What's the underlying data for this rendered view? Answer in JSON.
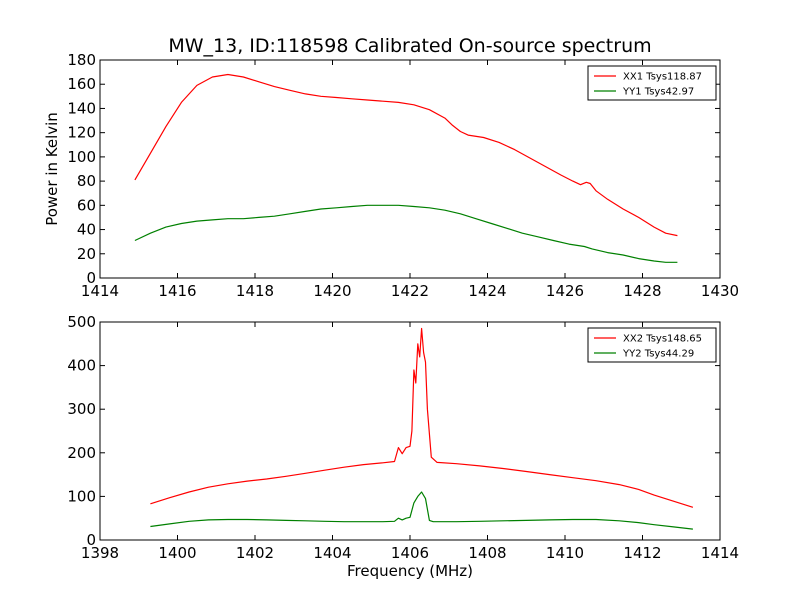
{
  "title": "MW_13, ID:118598 Calibrated On-source spectrum",
  "chart_data": [
    {
      "type": "line",
      "title": "MW_13, ID:118598 Calibrated On-source spectrum",
      "xlabel": "",
      "ylabel": "Power in Kelvin",
      "xlim": [
        1414,
        1430
      ],
      "ylim": [
        0,
        180
      ],
      "xticks": [
        1414,
        1416,
        1418,
        1420,
        1422,
        1424,
        1426,
        1428,
        1430
      ],
      "yticks": [
        0,
        20,
        40,
        60,
        80,
        100,
        120,
        140,
        160,
        180
      ],
      "grid": false,
      "legend": "top-right",
      "series": [
        {
          "name": "XX1 Tsys118.87",
          "color": "#ff0000",
          "x": [
            1414.9,
            1415.3,
            1415.7,
            1416.1,
            1416.5,
            1416.9,
            1417.3,
            1417.7,
            1418.1,
            1418.5,
            1418.9,
            1419.3,
            1419.7,
            1420.1,
            1420.5,
            1420.9,
            1421.3,
            1421.7,
            1422.1,
            1422.5,
            1422.9,
            1423.1,
            1423.3,
            1423.5,
            1423.9,
            1424.3,
            1424.7,
            1425.1,
            1425.5,
            1425.9,
            1426.2,
            1426.4,
            1426.55,
            1426.65,
            1426.8,
            1427.1,
            1427.5,
            1427.9,
            1428.3,
            1428.6,
            1428.9
          ],
          "y": [
            81,
            103,
            125,
            145,
            159,
            166,
            168,
            166,
            162,
            158,
            155,
            152,
            150,
            149,
            148,
            147,
            146,
            145,
            143,
            139,
            132,
            126,
            121,
            118,
            116,
            112,
            106,
            99,
            92,
            85,
            80,
            77,
            79,
            78,
            72,
            65,
            57,
            50,
            42,
            37,
            35
          ]
        },
        {
          "name": "YY1 Tsys42.97",
          "color": "#008000",
          "x": [
            1414.9,
            1415.3,
            1415.7,
            1416.1,
            1416.5,
            1416.9,
            1417.3,
            1417.7,
            1418.1,
            1418.5,
            1418.9,
            1419.3,
            1419.7,
            1420.1,
            1420.5,
            1420.9,
            1421.3,
            1421.7,
            1422.1,
            1422.5,
            1422.9,
            1423.3,
            1423.7,
            1424.1,
            1424.5,
            1424.9,
            1425.3,
            1425.7,
            1426.1,
            1426.5,
            1426.7,
            1427.1,
            1427.5,
            1427.9,
            1428.3,
            1428.6,
            1428.9
          ],
          "y": [
            31,
            37,
            42,
            45,
            47,
            48,
            49,
            49,
            50,
            51,
            53,
            55,
            57,
            58,
            59,
            60,
            60,
            60,
            59,
            58,
            56,
            53,
            49,
            45,
            41,
            37,
            34,
            31,
            28,
            26,
            24,
            21,
            19,
            16,
            14,
            13,
            13
          ]
        }
      ]
    },
    {
      "type": "line",
      "title": "",
      "xlabel": "Frequency (MHz)",
      "ylabel": "",
      "xlim": [
        1398,
        1414
      ],
      "ylim": [
        0,
        500
      ],
      "xticks": [
        1398,
        1400,
        1402,
        1404,
        1406,
        1408,
        1410,
        1412,
        1414
      ],
      "yticks": [
        0,
        100,
        200,
        300,
        400,
        500
      ],
      "grid": false,
      "legend": "top-right",
      "series": [
        {
          "name": "XX2 Tsys148.65",
          "color": "#ff0000",
          "x": [
            1399.3,
            1399.8,
            1400.3,
            1400.8,
            1401.3,
            1401.8,
            1402.3,
            1402.8,
            1403.3,
            1403.8,
            1404.3,
            1404.8,
            1405.3,
            1405.6,
            1405.7,
            1405.8,
            1405.9,
            1406.0,
            1406.05,
            1406.1,
            1406.15,
            1406.2,
            1406.25,
            1406.3,
            1406.35,
            1406.4,
            1406.45,
            1406.55,
            1406.7,
            1407.2,
            1407.8,
            1408.4,
            1409.0,
            1409.6,
            1410.2,
            1410.8,
            1411.4,
            1411.9,
            1412.3,
            1412.8,
            1413.3
          ],
          "y": [
            83,
            97,
            110,
            121,
            129,
            135,
            140,
            146,
            153,
            160,
            167,
            173,
            177,
            180,
            212,
            198,
            212,
            215,
            250,
            390,
            360,
            450,
            420,
            485,
            430,
            408,
            300,
            190,
            178,
            175,
            170,
            164,
            157,
            150,
            143,
            136,
            127,
            116,
            103,
            89,
            75
          ]
        },
        {
          "name": "YY2 Tsys44.29",
          "color": "#008000",
          "x": [
            1399.3,
            1399.8,
            1400.3,
            1400.8,
            1401.3,
            1401.8,
            1402.3,
            1402.8,
            1403.3,
            1403.8,
            1404.3,
            1404.8,
            1405.3,
            1405.6,
            1405.7,
            1405.8,
            1405.9,
            1406.0,
            1406.1,
            1406.2,
            1406.3,
            1406.4,
            1406.5,
            1406.6,
            1407.2,
            1407.8,
            1408.4,
            1409.0,
            1409.6,
            1410.2,
            1410.8,
            1411.4,
            1411.9,
            1412.3,
            1412.8,
            1413.3
          ],
          "y": [
            31,
            37,
            43,
            46,
            47,
            47,
            46,
            45,
            44,
            43,
            42,
            42,
            42,
            43,
            50,
            46,
            50,
            52,
            85,
            100,
            110,
            95,
            45,
            42,
            42,
            43,
            44,
            45,
            46,
            47,
            47,
            44,
            40,
            35,
            30,
            25
          ]
        }
      ]
    }
  ]
}
